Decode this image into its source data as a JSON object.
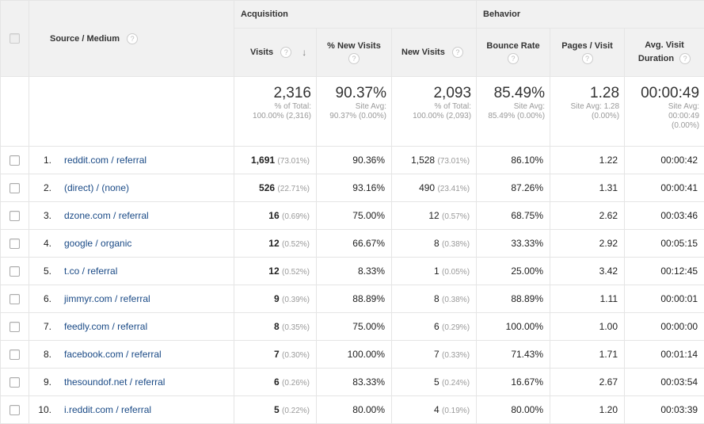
{
  "header": {
    "acquisition": "Acquisition",
    "behavior": "Behavior",
    "source_medium": "Source / Medium",
    "visits": "Visits",
    "pct_new_visits": "% New Visits",
    "new_visits": "New Visits",
    "bounce_rate": "Bounce Rate",
    "pages_visit": "Pages / Visit",
    "avg_visit_duration_1": "Avg. Visit",
    "avg_visit_duration_2": "Duration",
    "help_glyph": "?",
    "sort_glyph": "↓"
  },
  "totals": {
    "visits": "2,316",
    "visits_sub1": "% of Total:",
    "visits_sub2": "100.00% (2,316)",
    "pct_new": "90.37%",
    "pct_new_sub1": "Site Avg:",
    "pct_new_sub2": "90.37% (0.00%)",
    "new_visits": "2,093",
    "new_visits_sub1": "% of Total:",
    "new_visits_sub2": "100.00% (2,093)",
    "bounce": "85.49%",
    "bounce_sub1": "Site Avg:",
    "bounce_sub2": "85.49% (0.00%)",
    "pages": "1.28",
    "pages_sub1": "Site Avg: 1.28",
    "pages_sub2": "(0.00%)",
    "duration": "00:00:49",
    "duration_sub1": "Site Avg:",
    "duration_sub2": "00:00:49",
    "duration_sub3": "(0.00%)"
  },
  "rows": [
    {
      "idx": "1.",
      "source": "reddit.com / referral",
      "visits": "1,691",
      "visits_pct": "(73.01%)",
      "pct_new": "90.36%",
      "new_visits": "1,528",
      "new_pct": "(73.01%)",
      "bounce": "86.10%",
      "pages": "1.22",
      "duration": "00:00:42"
    },
    {
      "idx": "2.",
      "source": "(direct) / (none)",
      "visits": "526",
      "visits_pct": "(22.71%)",
      "pct_new": "93.16%",
      "new_visits": "490",
      "new_pct": "(23.41%)",
      "bounce": "87.26%",
      "pages": "1.31",
      "duration": "00:00:41"
    },
    {
      "idx": "3.",
      "source": "dzone.com / referral",
      "visits": "16",
      "visits_pct": "(0.69%)",
      "pct_new": "75.00%",
      "new_visits": "12",
      "new_pct": "(0.57%)",
      "bounce": "68.75%",
      "pages": "2.62",
      "duration": "00:03:46"
    },
    {
      "idx": "4.",
      "source": "google / organic",
      "visits": "12",
      "visits_pct": "(0.52%)",
      "pct_new": "66.67%",
      "new_visits": "8",
      "new_pct": "(0.38%)",
      "bounce": "33.33%",
      "pages": "2.92",
      "duration": "00:05:15"
    },
    {
      "idx": "5.",
      "source": "t.co / referral",
      "visits": "12",
      "visits_pct": "(0.52%)",
      "pct_new": "8.33%",
      "new_visits": "1",
      "new_pct": "(0.05%)",
      "bounce": "25.00%",
      "pages": "3.42",
      "duration": "00:12:45"
    },
    {
      "idx": "6.",
      "source": "jimmyr.com / referral",
      "visits": "9",
      "visits_pct": "(0.39%)",
      "pct_new": "88.89%",
      "new_visits": "8",
      "new_pct": "(0.38%)",
      "bounce": "88.89%",
      "pages": "1.11",
      "duration": "00:00:01"
    },
    {
      "idx": "7.",
      "source": "feedly.com / referral",
      "visits": "8",
      "visits_pct": "(0.35%)",
      "pct_new": "75.00%",
      "new_visits": "6",
      "new_pct": "(0.29%)",
      "bounce": "100.00%",
      "pages": "1.00",
      "duration": "00:00:00"
    },
    {
      "idx": "8.",
      "source": "facebook.com / referral",
      "visits": "7",
      "visits_pct": "(0.30%)",
      "pct_new": "100.00%",
      "new_visits": "7",
      "new_pct": "(0.33%)",
      "bounce": "71.43%",
      "pages": "1.71",
      "duration": "00:01:14"
    },
    {
      "idx": "9.",
      "source": "thesoundof.net / referral",
      "visits": "6",
      "visits_pct": "(0.26%)",
      "pct_new": "83.33%",
      "new_visits": "5",
      "new_pct": "(0.24%)",
      "bounce": "16.67%",
      "pages": "2.67",
      "duration": "00:03:54"
    },
    {
      "idx": "10.",
      "source": "i.reddit.com / referral",
      "visits": "5",
      "visits_pct": "(0.22%)",
      "pct_new": "80.00%",
      "new_visits": "4",
      "new_pct": "(0.19%)",
      "bounce": "80.00%",
      "pages": "1.20",
      "duration": "00:03:39"
    }
  ]
}
